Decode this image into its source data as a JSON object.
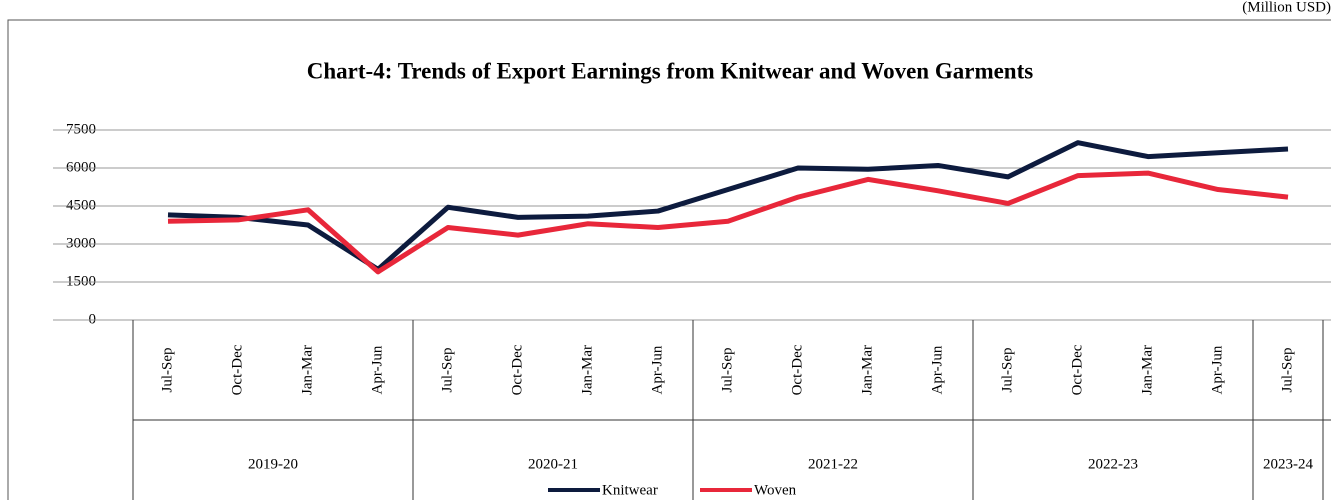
{
  "unit_note": "(Million USD)",
  "chart_data": {
    "type": "line",
    "title": "Chart-4: Trends of Export Earnings from Knitwear and Woven Garments",
    "categories": [
      "Jul-Sep",
      "Oct-Dec",
      "Jan-Mar",
      "Apr-Jun",
      "Jul-Sep",
      "Oct-Dec",
      "Jan-Mar",
      "Apr-Jun",
      "Jul-Sep",
      "Oct-Dec",
      "Jan-Mar",
      "Apr-Jun",
      "Jul-Sep",
      "Oct-Dec",
      "Jan-Mar",
      "Apr-Jun",
      "Jul-Sep"
    ],
    "years": [
      "2019-20",
      "2019-20",
      "2019-20",
      "2019-20",
      "2020-21",
      "2020-21",
      "2020-21",
      "2020-21",
      "2021-22",
      "2021-22",
      "2021-22",
      "2021-22",
      "2022-23",
      "2022-23",
      "2022-23",
      "2022-23",
      "2023-24"
    ],
    "series": [
      {
        "name": "Knitwear",
        "color": "#0d1b3e",
        "values": [
          4150,
          4050,
          3750,
          2000,
          4450,
          4050,
          4100,
          4300,
          5150,
          6000,
          5950,
          6100,
          5650,
          7000,
          6450,
          6600,
          6750
        ]
      },
      {
        "name": "Woven",
        "color": "#e8273a",
        "values": [
          3900,
          3950,
          4350,
          1900,
          3650,
          3350,
          3800,
          3650,
          3900,
          4850,
          5550,
          5100,
          4600,
          5700,
          5800,
          5150,
          4850
        ]
      }
    ],
    "ylim": [
      0,
      7500
    ],
    "yticks": [
      0,
      1500,
      3000,
      4500,
      6000,
      7500
    ],
    "grid": true
  }
}
